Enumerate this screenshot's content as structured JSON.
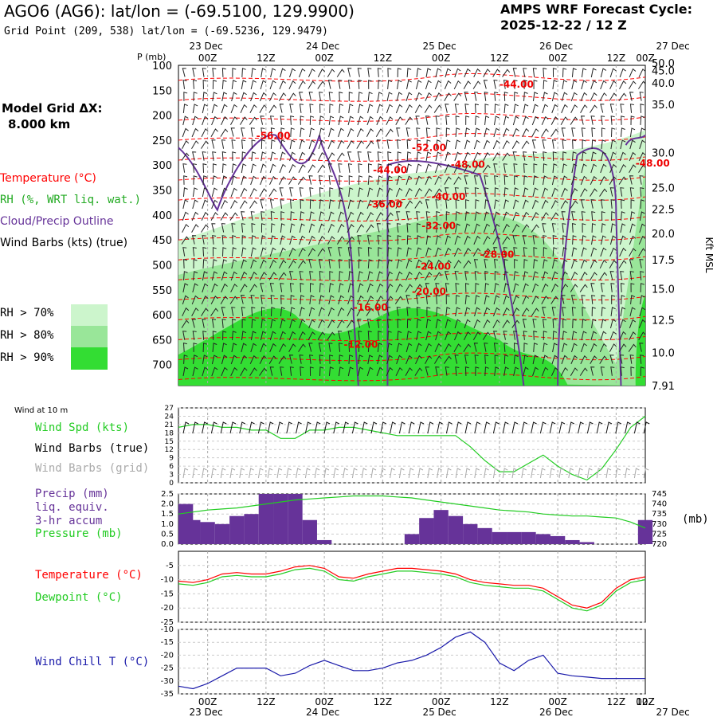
{
  "header": {
    "title": "AGO6 (AG6):  lat/lon = (-69.5100, 129.9900)",
    "subtitle": "Grid Point (209, 538) lat/lon = (-69.5236, 129.9479)",
    "cycle_line1": "AMPS WRF Forecast Cycle:",
    "cycle_line2": "2025-12-22 / 12  Z",
    "grid_label": "Model Grid ΔX:",
    "grid_value": "8.000 km"
  },
  "legend": {
    "temperature": "Temperature (°C)",
    "rh": "RH (%, WRT liq. wat.)",
    "cloud": "Cloud/Precip Outline",
    "wind": "Wind Barbs (kts) (true)",
    "rh70": "RH > 70%",
    "rh80": "RH > 80%",
    "rh90": "RH > 90%",
    "wind10m": "Wind at 10 m",
    "wspd": "Wind Spd (kts)",
    "wbtrue": "Wind Barbs (true)",
    "wbgrid": "Wind Barbs (grid)",
    "precip1": "Precip (mm)",
    "precip2": "liq. equiv.",
    "precip3": "3-hr accum",
    "pressure": "Pressure (mb)",
    "mb": "(mb)",
    "temp2": "Temperature (°C)",
    "dewpoint": "Dewpoint (°C)",
    "windchill": "Wind Chill T (°C)"
  },
  "colors": {
    "temp": "#ff0000",
    "rh70": "#ccf5cc",
    "rh80": "#99e699",
    "rh90": "#33dd33",
    "cloud": "#663399",
    "green": "#22cc22",
    "purple": "#663399",
    "blue": "#1a1aaa",
    "gray": "#aaaaaa"
  },
  "chart_data": [
    {
      "type": "heatmap",
      "name": "cross-section",
      "p_axis_label": "P (mb)",
      "p_ticks": [
        "100",
        "150",
        "200",
        "250",
        "300",
        "350",
        "400",
        "450",
        "500",
        "550",
        "600",
        "650",
        "700"
      ],
      "kft_axis_label": "Kft MSL",
      "kft_ticks": [
        {
          "label": "50.0",
          "p": 95
        },
        {
          "label": "45.0",
          "p": 110
        },
        {
          "label": "40.0",
          "p": 135
        },
        {
          "label": "35.0",
          "p": 178
        },
        {
          "label": "30.0",
          "p": 275
        },
        {
          "label": "25.0",
          "p": 345
        },
        {
          "label": "22.5",
          "p": 388
        },
        {
          "label": "20.0",
          "p": 437
        },
        {
          "label": "17.5",
          "p": 490
        },
        {
          "label": "15.0",
          "p": 548
        },
        {
          "label": "12.5",
          "p": 610
        },
        {
          "label": "10.0",
          "p": 676
        },
        {
          "label": "7.91",
          "p": 742
        }
      ],
      "time_top_hours": [
        "00Z",
        "12Z",
        "00Z",
        "12Z",
        "00Z",
        "12Z",
        "00Z",
        "12Z",
        "00Z",
        "12Z"
      ],
      "date_labels": [
        "23 Dec",
        "24 Dec",
        "25 Dec",
        "26 Dec",
        "27 Dec"
      ],
      "temp_labels": [
        {
          "text": "-56.00",
          "t": 10,
          "p": 248
        },
        {
          "text": "-52.00",
          "t": 42,
          "p": 272
        },
        {
          "text": "-44.00",
          "t": 34,
          "p": 316
        },
        {
          "text": "-48.00",
          "t": 50,
          "p": 305
        },
        {
          "text": "-44.00",
          "t": 60,
          "p": 145
        },
        {
          "text": "-48.00",
          "t": 88,
          "p": 303
        },
        {
          "text": "-36.00",
          "t": 33,
          "p": 385
        },
        {
          "text": "-40.00",
          "t": 46,
          "p": 370
        },
        {
          "text": "-32.00",
          "t": 44,
          "p": 428
        },
        {
          "text": "-28.00",
          "t": 56,
          "p": 486
        },
        {
          "text": "-24.00",
          "t": 43,
          "p": 510
        },
        {
          "text": "-20.00",
          "t": 42,
          "p": 560
        },
        {
          "text": "-16.00",
          "t": 30,
          "p": 592
        },
        {
          "text": "-12.00",
          "t": 28,
          "p": 666
        }
      ]
    },
    {
      "type": "line",
      "name": "wind-speed",
      "ylabel": "Wind Spd (kts)",
      "ylim": [
        0,
        27
      ],
      "yticks": [
        "0",
        "3",
        "6",
        "9",
        "12",
        "15",
        "18",
        "21",
        "24",
        "27"
      ],
      "x_hours": [
        0,
        3,
        6,
        9,
        12,
        15,
        18,
        21,
        24,
        27,
        30,
        33,
        36,
        39,
        42,
        45,
        48,
        51,
        54,
        57,
        60,
        63,
        66,
        69,
        72,
        75,
        78,
        81,
        84,
        87,
        90,
        93,
        96
      ],
      "values": [
        20,
        21,
        21,
        20,
        20,
        19,
        19,
        16,
        16,
        19,
        19,
        20,
        20,
        19,
        18,
        17,
        17,
        17,
        17,
        17,
        13,
        8,
        4,
        4,
        7,
        10,
        6,
        3,
        1,
        5,
        12,
        20,
        24
      ]
    },
    {
      "type": "bar",
      "name": "precip-pressure",
      "ylabel": "Precip (mm)",
      "ylim": [
        0,
        2.5
      ],
      "yticks": [
        "0.0",
        "0.5",
        "1.0",
        "1.5",
        "2.0",
        "2.5"
      ],
      "p_ylim": [
        720,
        745
      ],
      "p_ticks": [
        "720",
        "725",
        "730",
        "735",
        "740",
        "745"
      ],
      "x_hours": [
        0,
        3,
        6,
        9,
        12,
        15,
        18,
        21,
        24,
        27,
        30,
        33,
        36,
        39,
        42,
        45,
        48,
        51,
        54,
        57,
        60,
        63,
        66,
        69,
        72,
        75,
        78,
        81,
        84,
        87,
        90,
        93,
        96
      ],
      "precip": [
        2.0,
        1.2,
        1.1,
        1.0,
        1.4,
        1.5,
        2.5,
        2.5,
        2.5,
        1.2,
        0.2,
        0,
        0,
        0,
        0,
        0,
        0.5,
        1.3,
        1.7,
        1.4,
        1.0,
        0.8,
        0.6,
        0.6,
        0.6,
        0.5,
        0.4,
        0.2,
        0.1,
        0,
        0,
        0,
        1.2
      ],
      "pressure": [
        735,
        736,
        737,
        737.5,
        738,
        739,
        740,
        741,
        742,
        742.5,
        743,
        743.5,
        744,
        744,
        744,
        743.5,
        743,
        742,
        741,
        740,
        739,
        738,
        737,
        736.5,
        736,
        735,
        734.5,
        734,
        734,
        733.5,
        733,
        731,
        728
      ]
    },
    {
      "type": "line",
      "name": "temp-dewpoint",
      "ylim": [
        -25,
        0
      ],
      "yticks": [
        "-25",
        "-20",
        "-15",
        "-10",
        "-5"
      ],
      "x_hours": [
        0,
        3,
        6,
        9,
        12,
        15,
        18,
        21,
        24,
        27,
        30,
        33,
        36,
        39,
        42,
        45,
        48,
        51,
        54,
        57,
        60,
        63,
        66,
        69,
        72,
        75,
        78,
        81,
        84,
        87,
        90,
        93,
        96
      ],
      "temperature": [
        -10.5,
        -11,
        -10,
        -8,
        -7.5,
        -8,
        -8,
        -7,
        -5.5,
        -5,
        -6,
        -9,
        -9.5,
        -8,
        -7,
        -6,
        -6,
        -6.5,
        -7,
        -8,
        -10,
        -11,
        -11.5,
        -12,
        -12,
        -13,
        -16,
        -19,
        -20,
        -18,
        -13,
        -10,
        -9
      ],
      "dewpoint": [
        -11.5,
        -12,
        -11,
        -9,
        -8.5,
        -9,
        -9,
        -8,
        -6.5,
        -6,
        -7,
        -10,
        -10.5,
        -9,
        -8,
        -7,
        -7,
        -7.5,
        -8,
        -9,
        -11,
        -12,
        -12.5,
        -13,
        -13,
        -14,
        -17,
        -20,
        -21,
        -19,
        -14,
        -11,
        -10
      ]
    },
    {
      "type": "line",
      "name": "wind-chill",
      "ylabel": "Wind Chill T (°C)",
      "ylim": [
        -35,
        -10
      ],
      "yticks": [
        "-35",
        "-30",
        "-25",
        "-20",
        "-15",
        "-10"
      ],
      "x_hours": [
        0,
        3,
        6,
        9,
        12,
        15,
        18,
        21,
        24,
        27,
        30,
        33,
        36,
        39,
        42,
        45,
        48,
        51,
        54,
        57,
        60,
        63,
        66,
        69,
        72,
        75,
        78,
        81,
        84,
        87,
        90,
        93,
        96
      ],
      "values": [
        -32,
        -33,
        -31,
        -28,
        -25,
        -25,
        -25,
        -28,
        -27,
        -24,
        -22,
        -24,
        -26,
        -26,
        -25,
        -23,
        -22,
        -20,
        -17,
        -13,
        -11,
        -15,
        -23,
        -26,
        -22,
        -20,
        -27,
        -28,
        -28.5,
        -29,
        -29,
        -29,
        -29
      ]
    }
  ],
  "bottom_axis": {
    "hours": [
      "00Z",
      "12Z",
      "00Z",
      "12Z",
      "00Z",
      "12Z",
      "00Z",
      "12Z",
      "00Z",
      "12Z"
    ],
    "dates": [
      "23 Dec",
      "24 Dec",
      "25 Dec",
      "26 Dec",
      "27 Dec"
    ]
  }
}
